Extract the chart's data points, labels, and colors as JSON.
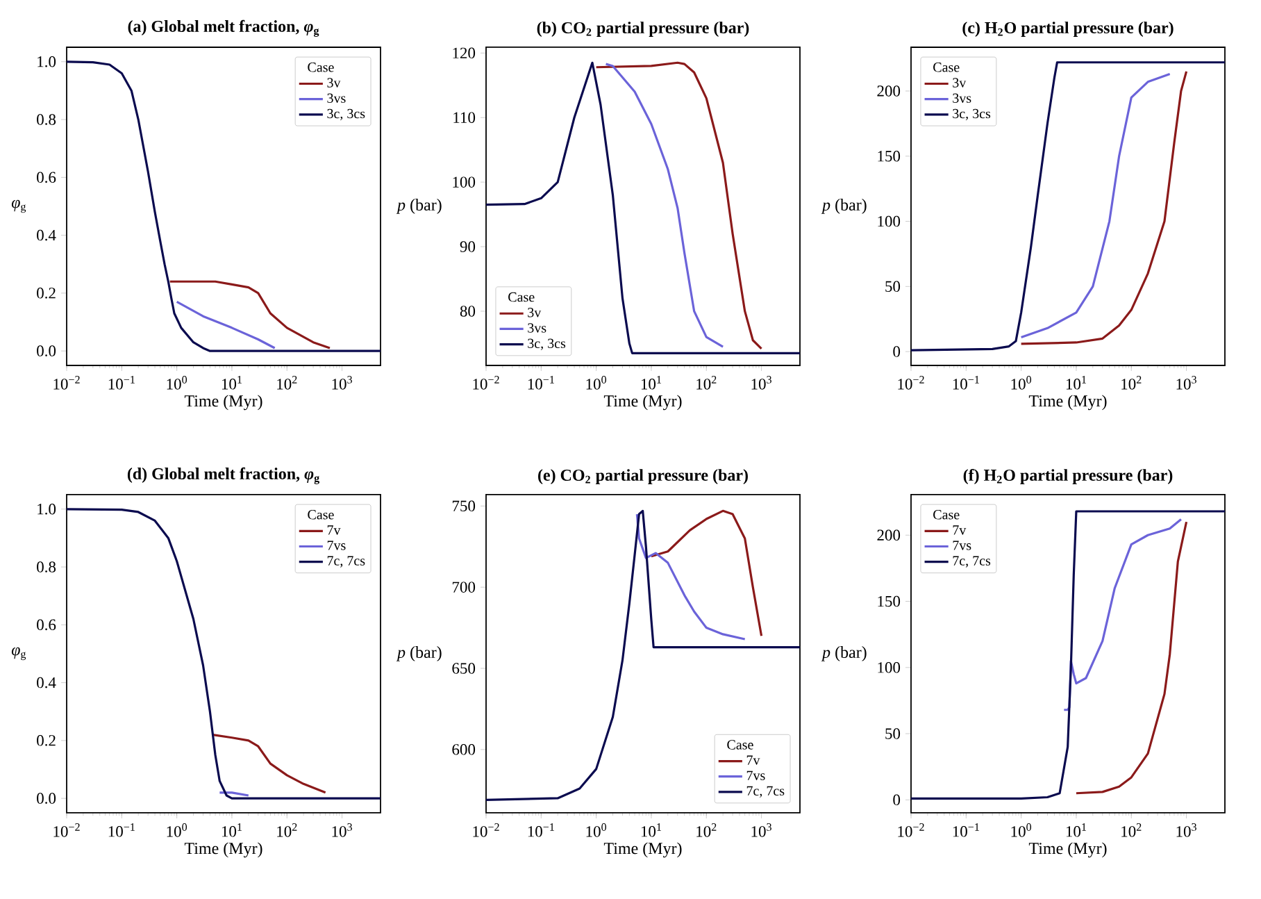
{
  "chart_data": [
    {
      "type": "line",
      "title": "(a) Global melt fraction, *φ*$_{g}$",
      "xlabel": "Time (Myr)",
      "ylabel": "*φ*$_{g}$",
      "legend_title": "Case",
      "legend": "top right",
      "log": "x",
      "xlim": [
        0.01,
        5000
      ],
      "xticks": [
        {
          "value": 0.01,
          "label": "10$^{−2}$"
        },
        {
          "value": 0.1,
          "label": "10$^{−1}$"
        },
        {
          "value": 1,
          "label": "10$^{0}$"
        },
        {
          "value": 10,
          "label": "10$^{1}$"
        },
        {
          "value": 100,
          "label": "10$^{2}$"
        },
        {
          "value": 1000,
          "label": "10$^{3}$"
        }
      ],
      "ylim": [
        -0.05,
        1.05
      ],
      "yticks": [
        {
          "value": 0,
          "label": "0.0"
        },
        {
          "value": 0.2,
          "label": "0.2"
        },
        {
          "value": 0.4,
          "label": "0.4"
        },
        {
          "value": 0.6,
          "label": "0.6"
        },
        {
          "value": 0.8,
          "label": "0.8"
        },
        {
          "value": 1,
          "label": "1.0"
        }
      ],
      "series": [
        {
          "name": "3v",
          "color": "#8b1a1a",
          "x": [
            0.75,
            2,
            5,
            10,
            20,
            30,
            50,
            100,
            300,
            600
          ],
          "values": [
            0.24,
            0.24,
            0.24,
            0.23,
            0.22,
            0.2,
            0.13,
            0.08,
            0.03,
            0.01
          ]
        },
        {
          "name": "3vs",
          "color": "#6b63d9",
          "x": [
            1,
            3,
            10,
            30,
            60
          ],
          "values": [
            0.17,
            0.12,
            0.08,
            0.04,
            0.01
          ]
        },
        {
          "name": "3c, 3cs",
          "color": "#0b0b4f",
          "x": [
            0.01,
            0.03,
            0.06,
            0.1,
            0.15,
            0.2,
            0.3,
            0.4,
            0.5,
            0.6,
            0.7,
            0.8,
            0.9,
            1.2,
            2,
            3,
            4,
            5000
          ],
          "values": [
            1.0,
            0.998,
            0.99,
            0.96,
            0.9,
            0.8,
            0.62,
            0.48,
            0.38,
            0.3,
            0.24,
            0.18,
            0.13,
            0.08,
            0.03,
            0.01,
            0,
            0
          ]
        }
      ]
    },
    {
      "type": "line",
      "title": "(b) CO$_{2}$ partial pressure (bar)",
      "xlabel": "Time (Myr)",
      "ylabel": "*p* (bar)",
      "legend_title": "Case",
      "legend": "bottom left",
      "log": "x",
      "xlim": [
        0.01,
        5000
      ],
      "xticks": [
        {
          "value": 0.01,
          "label": "10$^{−2}$"
        },
        {
          "value": 0.1,
          "label": "10$^{−1}$"
        },
        {
          "value": 1,
          "label": "10$^{0}$"
        },
        {
          "value": 10,
          "label": "10$^{1}$"
        },
        {
          "value": 100,
          "label": "10$^{2}$"
        },
        {
          "value": 1000,
          "label": "10$^{3}$"
        }
      ],
      "ylim": [
        71.6,
        120.9
      ],
      "yticks": [
        80,
        90,
        100,
        110,
        120
      ],
      "series": [
        {
          "name": "3v",
          "color": "#8b1a1a",
          "x": [
            1,
            10,
            30,
            40,
            60,
            100,
            200,
            300,
            500,
            700,
            1000
          ],
          "values": [
            117.8,
            118,
            118.5,
            118.3,
            117,
            113,
            103,
            92,
            80,
            75.5,
            74.2
          ]
        },
        {
          "name": "3vs",
          "color": "#6b63d9",
          "x": [
            1.5,
            2,
            5,
            10,
            20,
            30,
            40,
            60,
            100,
            200
          ],
          "values": [
            118.3,
            118,
            114,
            109,
            102,
            96,
            89,
            80,
            76,
            74.5
          ]
        },
        {
          "name": "3c, 3cs",
          "color": "#0b0b4f",
          "x": [
            0.01,
            0.05,
            0.1,
            0.2,
            0.4,
            0.85,
            1.2,
            2,
            3,
            4,
            4.5,
            5000
          ],
          "values": [
            96.5,
            96.6,
            97.5,
            100,
            110,
            118.5,
            112,
            98,
            82,
            75,
            73.5,
            73.5
          ]
        }
      ]
    },
    {
      "type": "line",
      "title": "(c) H$_{2}$O partial pressure (bar)",
      "xlabel": "Time (Myr)",
      "ylabel": "*p* (bar)",
      "legend_title": "Case",
      "legend": "top left",
      "log": "x",
      "xlim": [
        0.01,
        5000
      ],
      "xticks": [
        {
          "value": 0.01,
          "label": "10$^{−2}$"
        },
        {
          "value": 0.1,
          "label": "10$^{−1}$"
        },
        {
          "value": 1,
          "label": "10$^{0}$"
        },
        {
          "value": 10,
          "label": "10$^{1}$"
        },
        {
          "value": 100,
          "label": "10$^{2}$"
        },
        {
          "value": 1000,
          "label": "10$^{3}$"
        }
      ],
      "ylim": [
        -10.6,
        233.6
      ],
      "yticks": [
        0,
        50,
        100,
        150,
        200
      ],
      "series": [
        {
          "name": "3v",
          "color": "#8b1a1a",
          "x": [
            1,
            10,
            30,
            60,
            100,
            200,
            400,
            600,
            800,
            1000
          ],
          "values": [
            6,
            7,
            10,
            20,
            32,
            60,
            100,
            160,
            200,
            215
          ]
        },
        {
          "name": "3vs",
          "color": "#6b63d9",
          "x": [
            1,
            3,
            10,
            20,
            40,
            60,
            100,
            200,
            500
          ],
          "values": [
            11,
            18,
            30,
            50,
            100,
            150,
            195,
            207,
            213
          ]
        },
        {
          "name": "3c, 3cs",
          "color": "#0b0b4f",
          "x": [
            0.01,
            0.3,
            0.6,
            0.8,
            1,
            1.5,
            2,
            3,
            4,
            4.5,
            5000
          ],
          "values": [
            1,
            2,
            4,
            8,
            30,
            80,
            120,
            175,
            210,
            222,
            222
          ]
        }
      ]
    },
    {
      "type": "line",
      "title": "(d) Global melt fraction, *φ*$_{g}$",
      "xlabel": "Time (Myr)",
      "ylabel": "*φ*$_{g}$",
      "legend_title": "Case",
      "legend": "top right",
      "log": "x",
      "xlim": [
        0.01,
        5000
      ],
      "xticks": [
        {
          "value": 0.01,
          "label": "10$^{−2}$"
        },
        {
          "value": 0.1,
          "label": "10$^{−1}$"
        },
        {
          "value": 1,
          "label": "10$^{0}$"
        },
        {
          "value": 10,
          "label": "10$^{1}$"
        },
        {
          "value": 100,
          "label": "10$^{2}$"
        },
        {
          "value": 1000,
          "label": "10$^{3}$"
        }
      ],
      "ylim": [
        -0.05,
        1.05
      ],
      "yticks": [
        {
          "value": 0,
          "label": "0.0"
        },
        {
          "value": 0.2,
          "label": "0.2"
        },
        {
          "value": 0.4,
          "label": "0.4"
        },
        {
          "value": 0.6,
          "label": "0.6"
        },
        {
          "value": 0.8,
          "label": "0.8"
        },
        {
          "value": 1,
          "label": "1.0"
        }
      ],
      "series": [
        {
          "name": "7v",
          "color": "#8b1a1a",
          "x": [
            4.5,
            10,
            20,
            30,
            50,
            100,
            200,
            500
          ],
          "values": [
            0.22,
            0.21,
            0.2,
            0.18,
            0.12,
            0.08,
            0.05,
            0.02
          ]
        },
        {
          "name": "7vs",
          "color": "#6b63d9",
          "x": [
            6,
            10,
            20
          ],
          "values": [
            0.02,
            0.02,
            0.01
          ]
        },
        {
          "name": "7c, 7cs",
          "color": "#0b0b4f",
          "x": [
            0.01,
            0.1,
            0.2,
            0.4,
            0.7,
            1,
            2,
            3,
            4,
            5,
            6,
            8,
            10,
            5000
          ],
          "values": [
            1,
            0.998,
            0.99,
            0.96,
            0.9,
            0.82,
            0.62,
            0.46,
            0.3,
            0.15,
            0.06,
            0.01,
            0,
            0
          ]
        }
      ]
    },
    {
      "type": "line",
      "title": "(e) CO$_{2}$ partial pressure (bar)",
      "xlabel": "Time (Myr)",
      "ylabel": "*p* (bar)",
      "legend_title": "Case",
      "legend": "bottom right",
      "log": "x",
      "xlim": [
        0.01,
        5000
      ],
      "xticks": [
        {
          "value": 0.01,
          "label": "10$^{−2}$"
        },
        {
          "value": 0.1,
          "label": "10$^{−1}$"
        },
        {
          "value": 1,
          "label": "10$^{0}$"
        },
        {
          "value": 10,
          "label": "10$^{1}$"
        },
        {
          "value": 100,
          "label": "10$^{2}$"
        },
        {
          "value": 1000,
          "label": "10$^{3}$"
        }
      ],
      "ylim": [
        561,
        757
      ],
      "yticks": [
        600,
        650,
        700,
        750
      ],
      "series": [
        {
          "name": "7v",
          "color": "#8b1a1a",
          "x": [
            10,
            20,
            50,
            100,
            200,
            300,
            500,
            700,
            1000
          ],
          "values": [
            719,
            722,
            735,
            742,
            747,
            745,
            730,
            700,
            670
          ]
        },
        {
          "name": "7vs",
          "color": "#6b63d9",
          "x": [
            5.5,
            6,
            8,
            12,
            20,
            40,
            60,
            100,
            200,
            500
          ],
          "values": [
            745,
            730,
            718,
            721,
            715,
            695,
            685,
            675,
            671,
            668
          ]
        },
        {
          "name": "7c, 7cs",
          "color": "#0b0b4f",
          "x": [
            0.01,
            0.2,
            0.5,
            1,
            2,
            3,
            4,
            5,
            6,
            7,
            8,
            10,
            11,
            5000
          ],
          "values": [
            569,
            570,
            576,
            588,
            620,
            655,
            690,
            720,
            745,
            747,
            725,
            680,
            663,
            663
          ]
        }
      ]
    },
    {
      "type": "line",
      "title": "(f) H$_{2}$O partial pressure (bar)",
      "xlabel": "Time (Myr)",
      "ylabel": "*p* (bar)",
      "legend_title": "Case",
      "legend": "top left",
      "log": "x",
      "xlim": [
        0.01,
        5000
      ],
      "xticks": [
        {
          "value": 0.01,
          "label": "10$^{−2}$"
        },
        {
          "value": 0.1,
          "label": "10$^{−1}$"
        },
        {
          "value": 1,
          "label": "10$^{0}$"
        },
        {
          "value": 10,
          "label": "10$^{1}$"
        },
        {
          "value": 100,
          "label": "10$^{2}$"
        },
        {
          "value": 1000,
          "label": "10$^{3}$"
        }
      ],
      "ylim": [
        -9.8,
        230.6
      ],
      "yticks": [
        0,
        50,
        100,
        150,
        200
      ],
      "series": [
        {
          "name": "7v",
          "color": "#8b1a1a",
          "x": [
            10,
            30,
            60,
            100,
            200,
            400,
            500,
            700,
            1000
          ],
          "values": [
            5,
            6,
            10,
            17,
            35,
            80,
            110,
            180,
            210
          ]
        },
        {
          "name": "7vs",
          "color": "#6b63d9",
          "x": [
            6,
            7,
            7.5,
            8,
            9,
            10,
            15,
            30,
            50,
            100,
            200,
            500,
            800
          ],
          "values": [
            68,
            68,
            70,
            105,
            95,
            88,
            92,
            120,
            160,
            193,
            200,
            205,
            212
          ]
        },
        {
          "name": "7c, 7cs",
          "color": "#0b0b4f",
          "x": [
            0.01,
            1,
            3,
            5,
            7,
            8,
            9,
            10,
            5000
          ],
          "values": [
            1,
            1,
            2,
            5,
            40,
            100,
            170,
            218,
            218
          ]
        }
      ]
    }
  ]
}
